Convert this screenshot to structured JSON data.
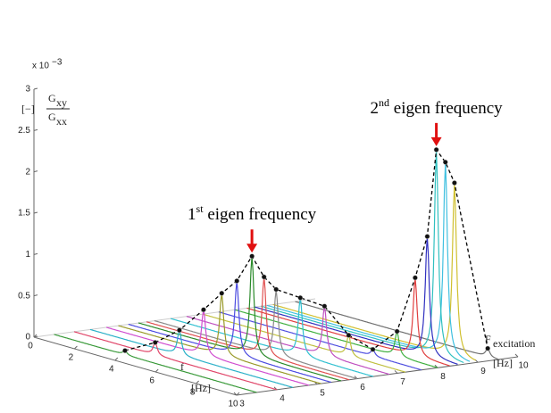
{
  "chart_data": {
    "type": "waterfall3d",
    "z_multiplier": "x 10",
    "z_multiplier_exp": "−3",
    "z_label_unit": "[−]",
    "z_label_num": "G",
    "z_label_num_sub": "xy",
    "z_label_den": "G",
    "z_label_den_sub": "xx",
    "x_label": "f",
    "x_unit": "[Hz]",
    "y_label": "F",
    "y_label_sub": "excitation",
    "y_unit": "[Hz]",
    "xlim": [
      0,
      10
    ],
    "xticks": [
      0,
      2,
      4,
      6,
      8,
      10
    ],
    "ylim": [
      3,
      10
    ],
    "yticks": [
      3,
      4,
      5,
      6,
      7,
      8,
      9,
      10
    ],
    "zlim": [
      0,
      3
    ],
    "zticks": [
      0,
      0.5,
      1,
      1.5,
      2,
      2.5,
      3
    ],
    "x": [
      3.5,
      4.0,
      4.4,
      4.8,
      5.1,
      5.35,
      5.6,
      5.8,
      6.0,
      6.4,
      6.8,
      7.2,
      7.6,
      8.0,
      8.3,
      8.5,
      8.65,
      8.8,
      8.95,
      9.5
    ],
    "values": [
      0.05,
      0.15,
      0.3,
      0.55,
      0.75,
      0.9,
      1.2,
      0.95,
      0.8,
      0.7,
      0.6,
      0.25,
      0.08,
      0.3,
      0.95,
      1.45,
      2.5,
      2.35,
      2.1,
      0.1
    ],
    "colors": [
      "#3a9a3a",
      "#e0476a",
      "#2ab0c8",
      "#d04dd0",
      "#9a9a2a",
      "#4b4be0",
      "#2a8a2a",
      "#e05050",
      "#8a8a8a",
      "#30c0d0",
      "#c050c0",
      "#c0c040",
      "#5050e0",
      "#40b040",
      "#e04040",
      "#3030c0",
      "#30c0c0",
      "#40c0e0",
      "#d0c030",
      "#707070"
    ],
    "envelope_color": "#000000",
    "annotations": [
      {
        "index": 6,
        "text": "1",
        "sup": "st",
        "rest": " eigen frequency"
      },
      {
        "index": 16,
        "text": "2",
        "sup": "nd",
        "rest": " eigen frequency"
      }
    ],
    "arrow_color": "#e01010"
  }
}
